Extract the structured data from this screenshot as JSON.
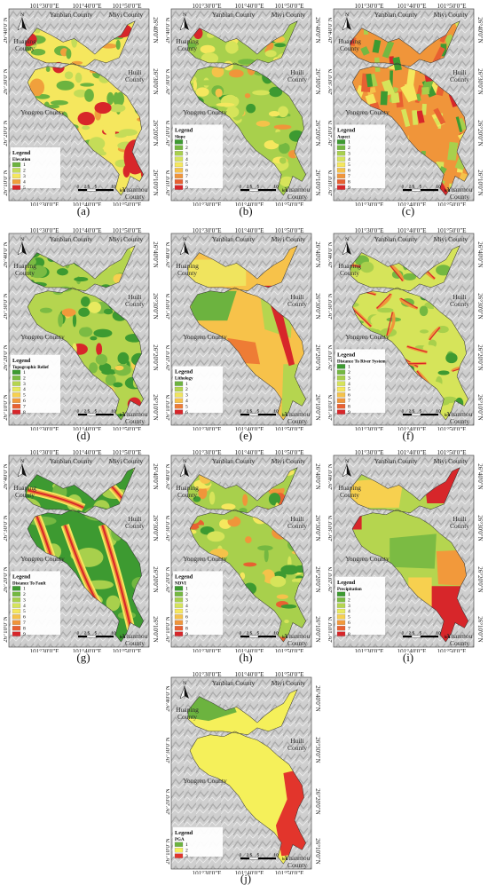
{
  "ticks": {
    "x": [
      "101°30'0\"E",
      "101°40'0\"E",
      "101°50'0\"E"
    ],
    "y": [
      "26°40'0\"N",
      "26°30'0\"N",
      "26°20'0\"N",
      "26°10'0\"N"
    ]
  },
  "counties": [
    "Yanbian County",
    "Miyi County",
    "Huaping County",
    "Huili County",
    "Yongren County",
    "Yuanmou County"
  ],
  "scalebar": {
    "labels": [
      "0",
      "2.5",
      "5",
      "10"
    ],
    "unit": "km"
  },
  "north_label": "N",
  "colors": {
    "ramp_10": [
      "#3d9a31",
      "#6cb33f",
      "#9ccc4a",
      "#c4dc58",
      "#e5e75c",
      "#f3d24d",
      "#f3a93d",
      "#ee7c35",
      "#e5512d",
      "#d7262a"
    ],
    "ramp_9": [
      "#3d9a31",
      "#74b841",
      "#a8d04c",
      "#d6e45a",
      "#f5e75e",
      "#f5c24a",
      "#f0953a",
      "#e86031",
      "#d7262a"
    ],
    "ramp_8": [
      "#3d9a31",
      "#7bbb43",
      "#b5d54f",
      "#e8ea5f",
      "#f7d04f",
      "#f2993b",
      "#e86031",
      "#d7262a"
    ],
    "ramp_5": [
      "#6cb33f",
      "#c4dc58",
      "#f5e75e",
      "#f0a03c",
      "#d7262a"
    ],
    "ramp_6": [
      "#6cb33f",
      "#b5d54f",
      "#f0e45e",
      "#f7c24a",
      "#ee7c35",
      "#d7262a"
    ],
    "ramp_3": [
      "#6cb33f",
      "#f5f05a",
      "#e2352c"
    ],
    "hillshade": "#c8c8c8"
  },
  "panels": [
    {
      "label": "(a)",
      "legend_title": "Elevation",
      "items": [
        "1",
        "2",
        "3",
        "4",
        "5"
      ],
      "ramp": "ramp_5",
      "pattern": "elevation"
    },
    {
      "label": "(b)",
      "legend_title": "Slope",
      "items": [
        "1",
        "2",
        "3",
        "4",
        "5",
        "6",
        "7",
        "8",
        "9"
      ],
      "ramp": "ramp_9",
      "pattern": "slope"
    },
    {
      "label": "(c)",
      "legend_title": "Aspect",
      "items": [
        "1",
        "2",
        "3",
        "4",
        "5",
        "6",
        "7",
        "8",
        "9"
      ],
      "ramp": "ramp_9",
      "pattern": "aspect"
    },
    {
      "label": "(d)",
      "legend_title": "Topographic Relief",
      "items": [
        "1",
        "2",
        "3",
        "4",
        "5",
        "6",
        "7",
        "8"
      ],
      "ramp": "ramp_8",
      "pattern": "relief"
    },
    {
      "label": "(e)",
      "legend_title": "Lithology",
      "items": [
        "1",
        "2",
        "3",
        "4",
        "5",
        "6"
      ],
      "ramp": "ramp_6",
      "pattern": "lithology"
    },
    {
      "label": "(f)",
      "legend_title": "Distance To River System",
      "items": [
        "1",
        "2",
        "3",
        "4",
        "5",
        "6",
        "7",
        "8",
        "9"
      ],
      "ramp": "ramp_9",
      "pattern": "river"
    },
    {
      "label": "(g)",
      "legend_title": "Distance To Fault",
      "items": [
        "1",
        "2",
        "3",
        "4",
        "5",
        "6",
        "7",
        "8",
        "9"
      ],
      "ramp": "ramp_9",
      "pattern": "fault"
    },
    {
      "label": "(h)",
      "legend_title": "NDVI",
      "items": [
        "1",
        "2",
        "3",
        "4",
        "5",
        "6",
        "7",
        "8",
        "9"
      ],
      "ramp": "ramp_9",
      "pattern": "ndvi"
    },
    {
      "label": "(i)",
      "legend_title": "Precipitation",
      "items": [
        "1",
        "2",
        "3",
        "4",
        "5",
        "6",
        "7",
        "8"
      ],
      "ramp": "ramp_8",
      "pattern": "precip"
    },
    {
      "label": "(j)",
      "legend_title": "PGA",
      "items": [
        "1",
        "2",
        "3"
      ],
      "ramp": "ramp_3",
      "pattern": "pga"
    }
  ]
}
